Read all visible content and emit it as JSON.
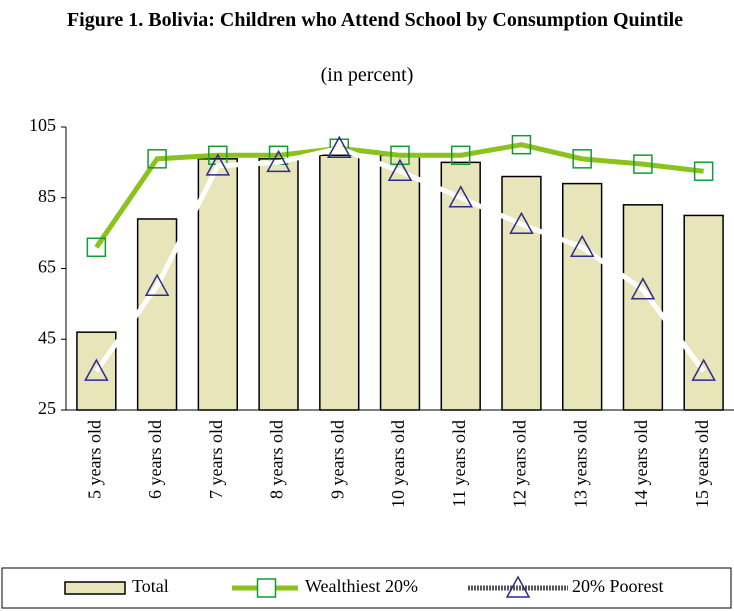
{
  "chart_data": {
    "type": "bar-line",
    "title": "Figure 1. Bolivia: Children who Attend School by Consumption Quintile",
    "subtitle": "(in percent)",
    "categories": [
      "5 years old",
      "6 years old",
      "7 years old",
      "8 years old",
      "9 years old",
      "10 years old",
      "11 years old",
      "12 years old",
      "13 years old",
      "14 years old",
      "15 years old"
    ],
    "series": [
      {
        "name": "Total",
        "type": "bar",
        "color": "#e9e5ba",
        "values": [
          47,
          79,
          96,
          96,
          97,
          97,
          95,
          91,
          89,
          83,
          80
        ]
      },
      {
        "name": "Wealthiest 20%",
        "type": "line",
        "color": "#8cc21e",
        "values": [
          71,
          96,
          97,
          97,
          99,
          97,
          97,
          100,
          96,
          94.5,
          92.5
        ]
      },
      {
        "name": "20% Poorest",
        "type": "line",
        "color": "#ffffff",
        "values": [
          36,
          60,
          94,
          95,
          99,
          92.5,
          85,
          77.5,
          71,
          59,
          36
        ]
      }
    ],
    "ylim": [
      25,
      105
    ],
    "yticks": [
      25,
      45,
      65,
      85,
      105
    ],
    "legend": "bottom"
  }
}
